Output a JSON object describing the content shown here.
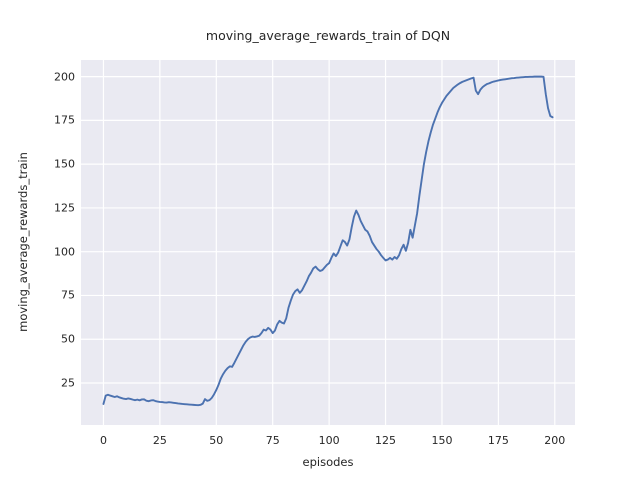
{
  "chart_data": {
    "type": "line",
    "title": "moving_average_rewards_train of DQN",
    "xlabel": "episodes",
    "ylabel": "moving_average_rewards_train",
    "legend": null,
    "grid": true,
    "plot_bg_color": "#eaeaf2",
    "grid_color": "#ffffff",
    "text_color": "#262626",
    "line_color": "#4c72b0",
    "xlim": [
      -9.95,
      208.95
    ],
    "ylim": [
      1,
      209.5
    ],
    "xticks": [
      0,
      25,
      50,
      75,
      100,
      125,
      150,
      175,
      200
    ],
    "yticks": [
      25,
      50,
      75,
      100,
      125,
      150,
      175,
      200
    ],
    "series": [
      {
        "name": "moving_average_rewards_train",
        "points": [
          [
            0,
            13.0
          ],
          [
            1,
            17.8
          ],
          [
            2,
            18.3
          ],
          [
            3,
            17.8
          ],
          [
            4,
            17.4
          ],
          [
            5,
            17.0
          ],
          [
            6,
            17.4
          ],
          [
            7,
            16.8
          ],
          [
            8,
            16.4
          ],
          [
            9,
            16.0
          ],
          [
            10,
            15.8
          ],
          [
            11,
            16.2
          ],
          [
            12,
            15.9
          ],
          [
            13,
            15.5
          ],
          [
            14,
            15.2
          ],
          [
            15,
            15.5
          ],
          [
            16,
            15.1
          ],
          [
            17,
            15.6
          ],
          [
            18,
            15.7
          ],
          [
            19,
            14.9
          ],
          [
            20,
            14.6
          ],
          [
            21,
            15.0
          ],
          [
            22,
            15.2
          ],
          [
            23,
            14.7
          ],
          [
            24,
            14.4
          ],
          [
            25,
            14.2
          ],
          [
            26,
            14.1
          ],
          [
            27,
            13.9
          ],
          [
            28,
            13.8
          ],
          [
            29,
            14.0
          ],
          [
            30,
            13.9
          ],
          [
            31,
            13.7
          ],
          [
            32,
            13.5
          ],
          [
            33,
            13.3
          ],
          [
            34,
            13.2
          ],
          [
            35,
            13.0
          ],
          [
            36,
            12.9
          ],
          [
            37,
            12.8
          ],
          [
            38,
            12.7
          ],
          [
            39,
            12.6
          ],
          [
            40,
            12.5
          ],
          [
            41,
            12.4
          ],
          [
            42,
            12.3
          ],
          [
            43,
            12.5
          ],
          [
            44,
            13.2
          ],
          [
            45,
            15.8
          ],
          [
            46,
            14.8
          ],
          [
            47,
            15.2
          ],
          [
            48,
            16.5
          ],
          [
            49,
            18.5
          ],
          [
            50,
            21.0
          ],
          [
            51,
            24.0
          ],
          [
            52,
            27.5
          ],
          [
            53,
            30.0
          ],
          [
            54,
            32.0
          ],
          [
            55,
            33.5
          ],
          [
            56,
            34.5
          ],
          [
            57,
            34.2
          ],
          [
            58,
            36.5
          ],
          [
            59,
            39.0
          ],
          [
            60,
            41.5
          ],
          [
            61,
            44.0
          ],
          [
            62,
            46.5
          ],
          [
            63,
            48.5
          ],
          [
            64,
            50.0
          ],
          [
            65,
            51.0
          ],
          [
            66,
            51.5
          ],
          [
            67,
            51.3
          ],
          [
            68,
            51.6
          ],
          [
            69,
            52.0
          ],
          [
            70,
            53.5
          ],
          [
            71,
            55.5
          ],
          [
            72,
            55.0
          ],
          [
            73,
            56.5
          ],
          [
            74,
            55.5
          ],
          [
            75,
            53.5
          ],
          [
            76,
            55.0
          ],
          [
            77,
            58.5
          ],
          [
            78,
            60.5
          ],
          [
            79,
            59.5
          ],
          [
            80,
            59.0
          ],
          [
            81,
            62.0
          ],
          [
            82,
            68.0
          ],
          [
            83,
            72.0
          ],
          [
            84,
            75.5
          ],
          [
            85,
            77.5
          ],
          [
            86,
            78.5
          ],
          [
            87,
            76.5
          ],
          [
            88,
            78.0
          ],
          [
            89,
            80.5
          ],
          [
            90,
            83.0
          ],
          [
            91,
            86.0
          ],
          [
            92,
            88.0
          ],
          [
            93,
            90.5
          ],
          [
            94,
            91.5
          ],
          [
            95,
            90.0
          ],
          [
            96,
            89.0
          ],
          [
            97,
            89.5
          ],
          [
            98,
            91.0
          ],
          [
            99,
            92.5
          ],
          [
            100,
            93.5
          ],
          [
            101,
            96.5
          ],
          [
            102,
            99.0
          ],
          [
            103,
            97.5
          ],
          [
            104,
            99.5
          ],
          [
            105,
            103.0
          ],
          [
            106,
            106.5
          ],
          [
            107,
            105.5
          ],
          [
            108,
            103.5
          ],
          [
            109,
            107.0
          ],
          [
            110,
            114.0
          ],
          [
            111,
            120.0
          ],
          [
            112,
            123.5
          ],
          [
            113,
            121.0
          ],
          [
            114,
            117.5
          ],
          [
            115,
            115.0
          ],
          [
            116,
            112.5
          ],
          [
            117,
            111.5
          ],
          [
            118,
            109.0
          ],
          [
            119,
            105.5
          ],
          [
            120,
            103.5
          ],
          [
            121,
            101.5
          ],
          [
            122,
            100.0
          ],
          [
            123,
            98.0
          ],
          [
            124,
            96.5
          ],
          [
            125,
            95.0
          ],
          [
            126,
            95.5
          ],
          [
            127,
            96.5
          ],
          [
            128,
            95.5
          ],
          [
            129,
            97.0
          ],
          [
            130,
            96.0
          ],
          [
            131,
            98.0
          ],
          [
            132,
            101.5
          ],
          [
            133,
            104.0
          ],
          [
            134,
            100.5
          ],
          [
            135,
            105.0
          ],
          [
            136,
            112.5
          ],
          [
            137,
            108.0
          ],
          [
            138,
            115.0
          ],
          [
            139,
            122.0
          ],
          [
            140,
            132.0
          ],
          [
            141,
            141.0
          ],
          [
            142,
            150.0
          ],
          [
            143,
            157.0
          ],
          [
            144,
            163.0
          ],
          [
            145,
            168.0
          ],
          [
            146,
            172.5
          ],
          [
            147,
            176.0
          ],
          [
            148,
            179.5
          ],
          [
            149,
            182.5
          ],
          [
            150,
            185.0
          ],
          [
            151,
            187.0
          ],
          [
            152,
            189.0
          ],
          [
            153,
            190.5
          ],
          [
            154,
            192.0
          ],
          [
            155,
            193.5
          ],
          [
            156,
            194.5
          ],
          [
            157,
            195.5
          ],
          [
            158,
            196.3
          ],
          [
            159,
            197.0
          ],
          [
            160,
            197.5
          ],
          [
            161,
            198.0
          ],
          [
            162,
            198.5
          ],
          [
            163,
            199.0
          ],
          [
            164,
            199.4
          ],
          [
            165,
            192.0
          ],
          [
            166,
            190.0
          ],
          [
            167,
            192.5
          ],
          [
            168,
            194.0
          ],
          [
            169,
            195.0
          ],
          [
            170,
            195.8
          ],
          [
            171,
            196.2
          ],
          [
            172,
            196.8
          ],
          [
            173,
            197.2
          ],
          [
            174,
            197.5
          ],
          [
            175,
            197.8
          ],
          [
            176,
            198.1
          ],
          [
            177,
            198.3
          ],
          [
            178,
            198.5
          ],
          [
            179,
            198.7
          ],
          [
            180,
            198.9
          ],
          [
            181,
            199.1
          ],
          [
            182,
            199.2
          ],
          [
            183,
            199.4
          ],
          [
            184,
            199.5
          ],
          [
            185,
            199.6
          ],
          [
            186,
            199.7
          ],
          [
            187,
            199.8
          ],
          [
            188,
            199.8
          ],
          [
            189,
            199.9
          ],
          [
            190,
            199.9
          ],
          [
            191,
            200.0
          ],
          [
            192,
            200.0
          ],
          [
            193,
            200.0
          ],
          [
            194,
            200.0
          ],
          [
            195,
            199.9
          ],
          [
            196,
            190.0
          ],
          [
            197,
            182.0
          ],
          [
            198,
            177.5
          ],
          [
            199,
            176.8
          ]
        ]
      }
    ]
  }
}
